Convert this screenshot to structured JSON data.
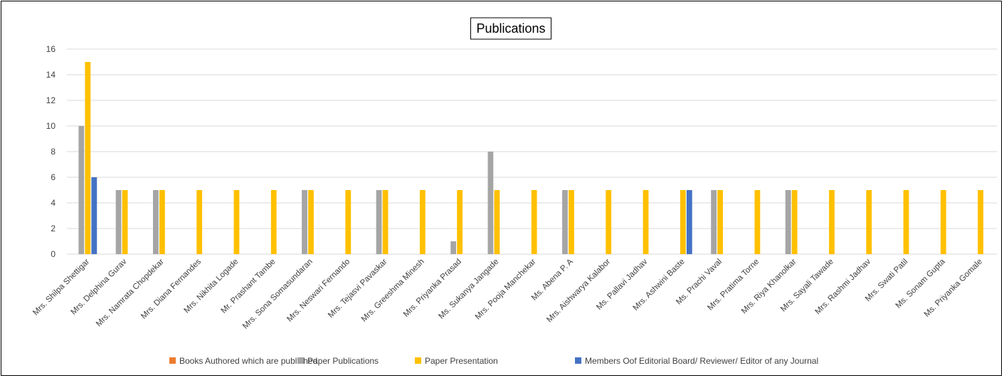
{
  "chart_data": {
    "type": "bar",
    "title": "Publications",
    "xlabel": "",
    "ylabel": "",
    "ylim": [
      0,
      16
    ],
    "yticks": [
      "0",
      "2",
      "4",
      "6",
      "8",
      "10",
      "12",
      "14",
      "16"
    ],
    "grid": true,
    "legend_position": "bottom",
    "categories": [
      "Mrs. Shilpa  Shettigar",
      "Mrs. Delphina  Gurav",
      "Mrs. Namrata Chopdekar",
      "Mrs. Diana Fernandes",
      "Mrs. Nikhita Logade",
      "Mr. Prashant Tambe",
      "Mrs. Sona Somasundaran",
      "Mrs. Neswari Fernando",
      "Mrs. Tejasvi Pavaskar",
      "Mrs. Greeshma Minesh",
      "Mrs. Priyanka Prasad",
      "Ms. Sukanya Jangade",
      "Mrs. Pooja Manchekar",
      "Ms. Abena P. A",
      "Mrs. Aishwarya  Kalabor",
      "Ms. Pallavi Jadhav",
      "Mrs. Ashwini Baste",
      "Ms. Prachi Vaval",
      "Mrs. Pratima Torne",
      "Mrs. Riya Khanolkar",
      "Mrs. Sayali Tawade",
      "Mrs. Rashmi Jadhav",
      "Mrs. Swati Patil",
      "Ms. Sonam Gupta",
      "Ms. Priyanka Gomale"
    ],
    "series": [
      {
        "name": "Books Authored which are published",
        "color": "#ED7D31",
        "values": [
          0,
          0,
          0,
          0,
          0,
          0,
          0,
          0,
          0,
          0,
          0,
          0,
          0,
          0,
          0,
          0,
          0,
          0,
          0,
          0,
          0,
          0,
          0,
          0,
          0
        ]
      },
      {
        "name": "Paper Publications",
        "color": "#A5A5A5",
        "values": [
          10,
          5,
          5,
          0,
          0,
          0,
          5,
          0,
          5,
          0,
          1,
          8,
          0,
          5,
          0,
          0,
          0,
          5,
          0,
          5,
          0,
          0,
          0,
          0,
          0
        ]
      },
      {
        "name": "Paper Presentation",
        "color": "#FFC000",
        "values": [
          15,
          5,
          5,
          5,
          5,
          5,
          5,
          5,
          5,
          5,
          5,
          5,
          5,
          5,
          5,
          5,
          5,
          5,
          5,
          5,
          5,
          5,
          5,
          5,
          5
        ]
      },
      {
        "name": "Members Oof Editorial Board/ Reviewer/ Editor of any Journal",
        "color": "#4472C4",
        "values": [
          6,
          0,
          0,
          0,
          0,
          0,
          0,
          0,
          0,
          0,
          0,
          0,
          0,
          0,
          0,
          0,
          5,
          0,
          0,
          0,
          0,
          0,
          0,
          0,
          0
        ]
      }
    ]
  }
}
